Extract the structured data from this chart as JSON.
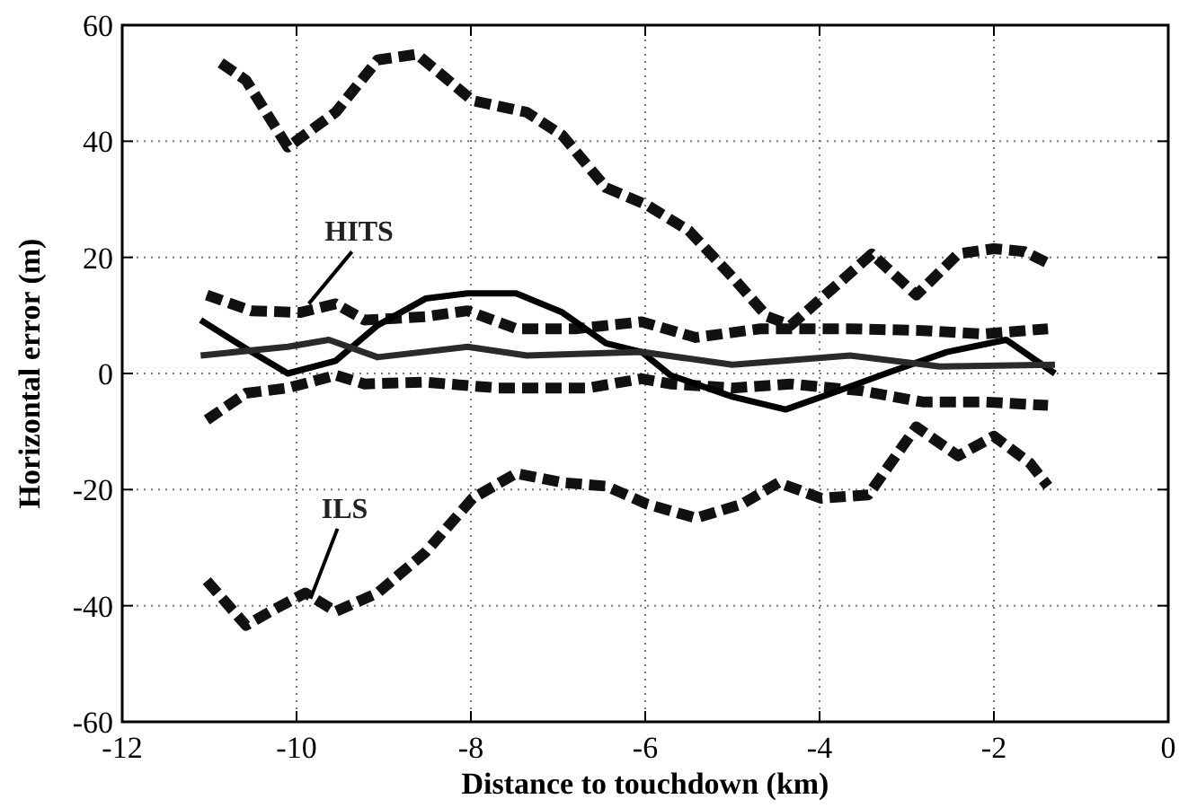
{
  "chart_data": {
    "type": "line",
    "xlabel": "Distance to touchdown (km)",
    "ylabel": "Horizontal error (m)",
    "xlim": [
      -12,
      0
    ],
    "ylim": [
      -60,
      60
    ],
    "xticks": [
      -12,
      -10,
      -8,
      -6,
      -4,
      -2,
      0
    ],
    "yticks": [
      -60,
      -40,
      -20,
      0,
      20,
      40,
      60
    ],
    "grid": true,
    "marker": "none",
    "series": [
      {
        "color": "#111111",
        "line_style": "dashed",
        "x": [
          -10.87,
          -10.58,
          -10.1,
          -9.55,
          -9.07,
          -8.62,
          -8.3,
          -7.98,
          -7.36,
          -6.95,
          -6.45,
          -5.98,
          -5.5,
          -5.0,
          -4.6,
          -4.33,
          -3.86,
          -3.4,
          -2.89,
          -2.41,
          -2.0,
          -1.65,
          -1.38
        ],
        "values": [
          53.5,
          50.5,
          39,
          45,
          54,
          55,
          51,
          47,
          45,
          41,
          32,
          29,
          24.6,
          16.6,
          9.8,
          8.3,
          14.5,
          20.6,
          13.5,
          20.6,
          21.5,
          21,
          19
        ]
      },
      {
        "color": "#111111",
        "line_style": "dashed",
        "x": [
          -11.03,
          -10.52,
          -9.96,
          -9.55,
          -9.22,
          -8.52,
          -8.04,
          -7.48,
          -6.8,
          -6.04,
          -5.42,
          -4.68,
          -3.65,
          -2.82,
          -2.12,
          -1.38
        ],
        "values": [
          13.5,
          10.8,
          10.5,
          12,
          9.2,
          9.8,
          10.8,
          7.7,
          7.7,
          8.9,
          6.2,
          7.7,
          7.7,
          7.4,
          6.8,
          7.7
        ]
      },
      {
        "color": "#111111",
        "line_style": "dashed",
        "x": [
          -11.03,
          -10.58,
          -10.1,
          -9.55,
          -9.22,
          -8.52,
          -7.69,
          -6.66,
          -6.04,
          -5.71,
          -5.0,
          -4.33,
          -3.51,
          -2.82,
          -2.12,
          -1.38
        ],
        "values": [
          -8,
          -3.4,
          -2.5,
          -0.3,
          -1.8,
          -1.5,
          -2.5,
          -2.5,
          -0.9,
          -1.8,
          -2.5,
          -1.8,
          -3,
          -4.9,
          -4.9,
          -5.5
        ]
      },
      {
        "color": "#111111",
        "line_style": "dashed",
        "x": [
          -11.03,
          -10.58,
          -10.3,
          -9.9,
          -9.55,
          -9.07,
          -8.52,
          -7.98,
          -7.48,
          -6.95,
          -6.45,
          -5.98,
          -5.42,
          -4.89,
          -4.47,
          -3.98,
          -3.44,
          -2.89,
          -2.41,
          -2.0,
          -1.59,
          -1.38
        ],
        "values": [
          -35.7,
          -43.4,
          -41,
          -37.8,
          -41,
          -37.8,
          -30.8,
          -21.5,
          -17.2,
          -18.8,
          -19.4,
          -22.5,
          -24.9,
          -22.5,
          -18.8,
          -21.5,
          -20.9,
          -9.2,
          -14.2,
          -10.8,
          -15.4,
          -19.4
        ]
      },
      {
        "color": "#000000",
        "line_style": "solid",
        "x": [
          -11.1,
          -10.58,
          -10.1,
          -9.55,
          -9.07,
          -8.52,
          -8.04,
          -7.48,
          -6.95,
          -6.45,
          -6.04,
          -5.71,
          -5.0,
          -4.39,
          -3.86,
          -3.24,
          -2.54,
          -1.86,
          -1.3
        ],
        "values": [
          9.2,
          4.3,
          0,
          2.2,
          8.3,
          12.9,
          13.8,
          13.8,
          10.5,
          5.2,
          3.7,
          -0.3,
          -4,
          -6.2,
          -3.4,
          0,
          3.7,
          5.8,
          0
        ]
      },
      {
        "color": "#2a2a2a",
        "line_style": "solid",
        "x": [
          -11.1,
          -10.1,
          -9.63,
          -9.07,
          -8.04,
          -7.36,
          -6.04,
          -5.0,
          -3.65,
          -2.62,
          -1.3
        ],
        "values": [
          3.1,
          4.6,
          5.8,
          2.8,
          4.6,
          3.1,
          3.7,
          1.5,
          3.1,
          1.2,
          1.5
        ]
      }
    ],
    "annotations": [
      {
        "text": "HITS",
        "x": -9.86,
        "y": 12
      },
      {
        "text": "ILS",
        "x": -9.84,
        "y": -38.8
      }
    ]
  }
}
